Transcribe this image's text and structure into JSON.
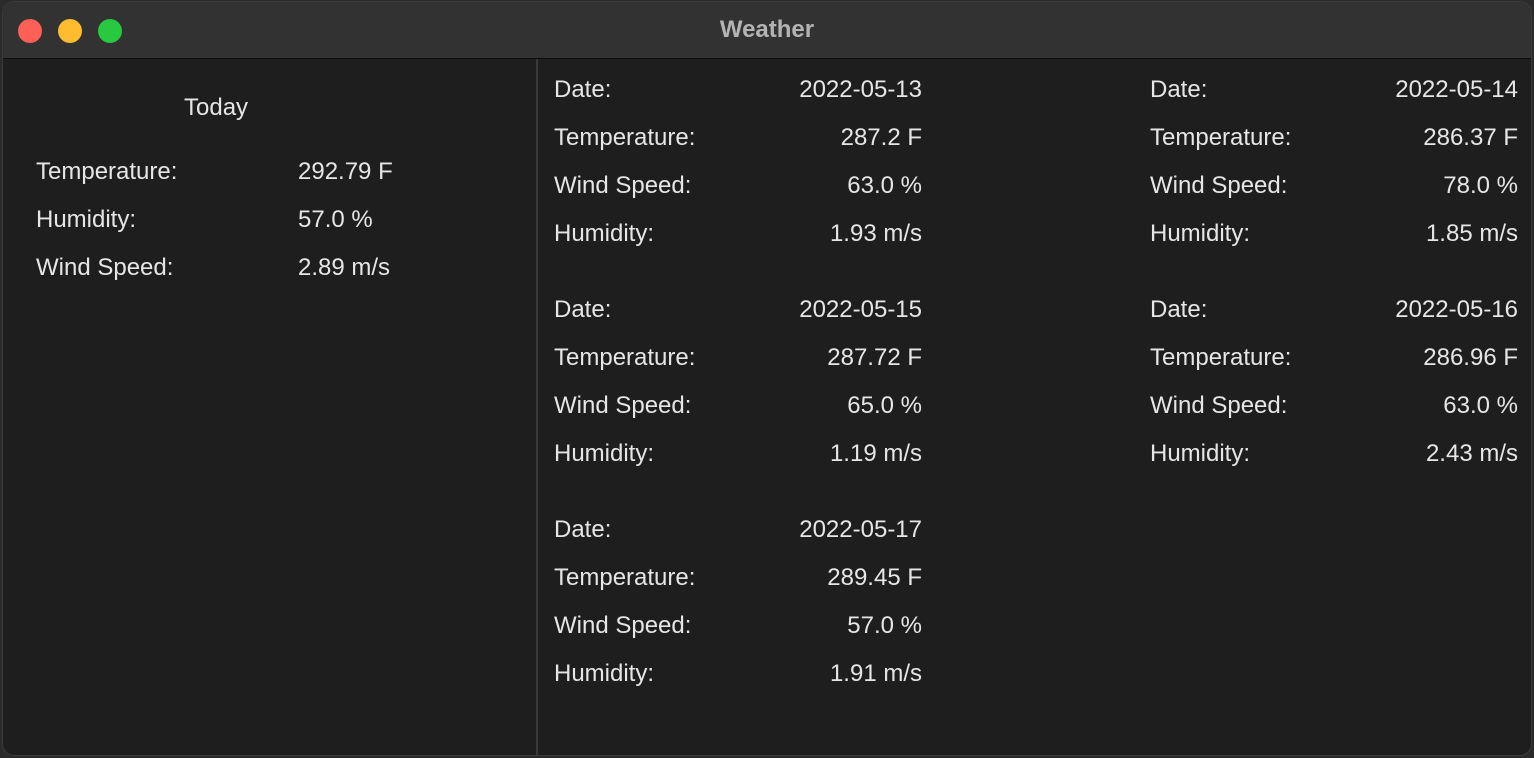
{
  "window": {
    "title": "Weather"
  },
  "today": {
    "title": "Today",
    "rows": [
      {
        "label": "Temperature:",
        "value": "292.79 F"
      },
      {
        "label": "Humidity:",
        "value": "57.0 %"
      },
      {
        "label": "Wind Speed:",
        "value": "2.89 m/s"
      }
    ]
  },
  "forecast": [
    {
      "date_label": "Date:",
      "date": "2022-05-13",
      "temp_label": "Temperature:",
      "temp": "287.2 F",
      "wind_label": "Wind Speed:",
      "wind": "63.0 %",
      "humidity_label": "Humidity:",
      "humidity": "1.93 m/s"
    },
    {
      "date_label": "Date:",
      "date": "2022-05-14",
      "temp_label": "Temperature:",
      "temp": "286.37 F",
      "wind_label": "Wind Speed:",
      "wind": "78.0 %",
      "humidity_label": "Humidity:",
      "humidity": "1.85 m/s"
    },
    {
      "date_label": "Date:",
      "date": "2022-05-15",
      "temp_label": "Temperature:",
      "temp": "287.72 F",
      "wind_label": "Wind Speed:",
      "wind": "65.0 %",
      "humidity_label": "Humidity:",
      "humidity": "1.19 m/s"
    },
    {
      "date_label": "Date:",
      "date": "2022-05-16",
      "temp_label": "Temperature:",
      "temp": "286.96 F",
      "wind_label": "Wind Speed:",
      "wind": "63.0 %",
      "humidity_label": "Humidity:",
      "humidity": "2.43 m/s"
    },
    {
      "date_label": "Date:",
      "date": "2022-05-17",
      "temp_label": "Temperature:",
      "temp": "289.45 F",
      "wind_label": "Wind Speed:",
      "wind": "57.0 %",
      "humidity_label": "Humidity:",
      "humidity": "1.91 m/s"
    }
  ]
}
